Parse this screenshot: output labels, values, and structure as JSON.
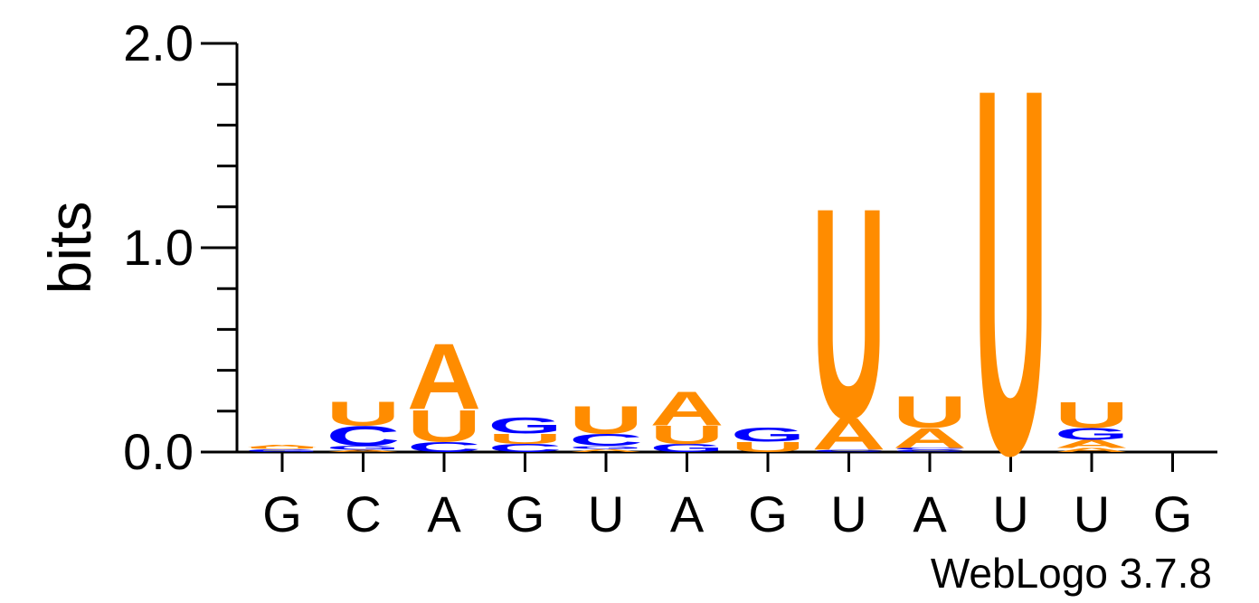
{
  "chart_data": {
    "type": "sequence-logo",
    "ylabel": "bits",
    "ylim": [
      0,
      2
    ],
    "y_ticks": [
      "0.0",
      "1.0",
      "2.0"
    ],
    "x_labels": [
      "G",
      "C",
      "A",
      "G",
      "U",
      "A",
      "G",
      "U",
      "A",
      "U",
      "U",
      "G"
    ],
    "colors": {
      "A": "#ff8c00",
      "U": "#ff8c00",
      "C": "#0000ff",
      "G": "#0000ff"
    },
    "stacks": [
      [
        {
          "letter": "G",
          "height": 0.015
        },
        {
          "letter": "U",
          "height": 0.01
        },
        {
          "letter": "A",
          "height": 0.01
        }
      ],
      [
        {
          "letter": "A",
          "height": 0.01
        },
        {
          "letter": "G",
          "height": 0.02
        },
        {
          "letter": "C",
          "height": 0.1
        },
        {
          "letter": "U",
          "height": 0.12
        }
      ],
      [
        {
          "letter": "C",
          "height": 0.05
        },
        {
          "letter": "U",
          "height": 0.16
        },
        {
          "letter": "A",
          "height": 0.33
        }
      ],
      [
        {
          "letter": "C",
          "height": 0.04
        },
        {
          "letter": "U",
          "height": 0.05
        },
        {
          "letter": "G",
          "height": 0.08
        }
      ],
      [
        {
          "letter": "A",
          "height": 0.015
        },
        {
          "letter": "G",
          "height": 0.015
        },
        {
          "letter": "C",
          "height": 0.06
        },
        {
          "letter": "U",
          "height": 0.14
        }
      ],
      [
        {
          "letter": "G",
          "height": 0.04
        },
        {
          "letter": "U",
          "height": 0.09
        },
        {
          "letter": "A",
          "height": 0.17
        }
      ],
      [
        {
          "letter": "U",
          "height": 0.05
        },
        {
          "letter": "G",
          "height": 0.07
        }
      ],
      [
        {
          "letter": "C",
          "height": 0.01
        },
        {
          "letter": "A",
          "height": 0.16
        },
        {
          "letter": "U",
          "height": 1.06
        }
      ],
      [
        {
          "letter": "C",
          "height": 0.01
        },
        {
          "letter": "C",
          "height": 0.01
        },
        {
          "letter": "A",
          "height": 0.1
        },
        {
          "letter": "U",
          "height": 0.16
        }
      ],
      [
        {
          "letter": "U",
          "height": 1.84
        }
      ],
      [
        {
          "letter": "A",
          "height": 0.02
        },
        {
          "letter": "A",
          "height": 0.04
        },
        {
          "letter": "G",
          "height": 0.06
        },
        {
          "letter": "U",
          "height": 0.13
        }
      ],
      []
    ]
  },
  "watermark": "WebLogo 3.7.8"
}
